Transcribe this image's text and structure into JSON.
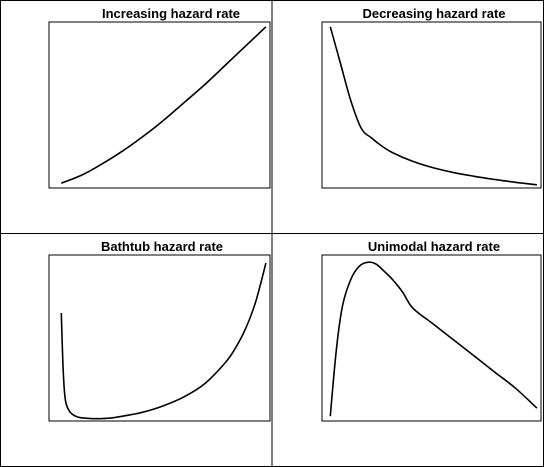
{
  "chart_data": [
    {
      "type": "line",
      "title": "Increasing hazard rate",
      "xlabel": "",
      "ylabel": "",
      "x": [
        0,
        0.1,
        0.2,
        0.3,
        0.4,
        0.5,
        0.6,
        0.7,
        0.8,
        0.9,
        1.0
      ],
      "y": [
        0.03,
        0.08,
        0.15,
        0.23,
        0.32,
        0.42,
        0.53,
        0.64,
        0.76,
        0.88,
        1.0
      ],
      "xlim": [
        -0.06,
        1.02
      ],
      "ylim": [
        0,
        1.03
      ],
      "axes_ticks": false
    },
    {
      "type": "line",
      "title": "Decreasing hazard rate",
      "xlabel": "",
      "ylabel": "",
      "x": [
        0,
        0.05,
        0.1,
        0.15,
        0.2,
        0.25,
        0.3,
        0.4,
        0.5,
        0.6,
        0.7,
        0.8,
        0.9,
        1.0
      ],
      "y": [
        1.0,
        0.77,
        0.54,
        0.37,
        0.31,
        0.26,
        0.22,
        0.165,
        0.125,
        0.095,
        0.072,
        0.052,
        0.035,
        0.02
      ],
      "xlim": [
        -0.04,
        1.02
      ],
      "ylim": [
        0,
        1.03
      ],
      "axes_ticks": false
    },
    {
      "type": "line",
      "title": "Bathtub hazard rate",
      "xlabel": "",
      "ylabel": "",
      "x": [
        0,
        0.01,
        0.02,
        0.04,
        0.07,
        0.1,
        0.15,
        0.2,
        0.25,
        0.3,
        0.4,
        0.5,
        0.6,
        0.7,
        0.8,
        0.85,
        0.9,
        0.95,
        1.0
      ],
      "y": [
        0.67,
        0.3,
        0.13,
        0.06,
        0.03,
        0.02,
        0.015,
        0.015,
        0.02,
        0.03,
        0.055,
        0.095,
        0.15,
        0.23,
        0.36,
        0.45,
        0.57,
        0.74,
        0.98
      ],
      "xlim": [
        -0.06,
        1.02
      ],
      "ylim": [
        0,
        1.03
      ],
      "axes_ticks": false
    },
    {
      "type": "line",
      "title": "Unimodal hazard rate",
      "xlabel": "",
      "ylabel": "",
      "x": [
        0,
        0.03,
        0.06,
        0.1,
        0.14,
        0.18,
        0.22,
        0.26,
        0.3,
        0.35,
        0.4,
        0.5,
        0.6,
        0.7,
        0.8,
        0.9,
        1.0
      ],
      "y": [
        0.03,
        0.45,
        0.72,
        0.88,
        0.96,
        0.985,
        0.975,
        0.93,
        0.88,
        0.8,
        0.7,
        0.6,
        0.5,
        0.4,
        0.3,
        0.2,
        0.08
      ],
      "xlim": [
        -0.04,
        1.02
      ],
      "ylim": [
        0,
        1.03
      ],
      "axes_ticks": false
    }
  ]
}
